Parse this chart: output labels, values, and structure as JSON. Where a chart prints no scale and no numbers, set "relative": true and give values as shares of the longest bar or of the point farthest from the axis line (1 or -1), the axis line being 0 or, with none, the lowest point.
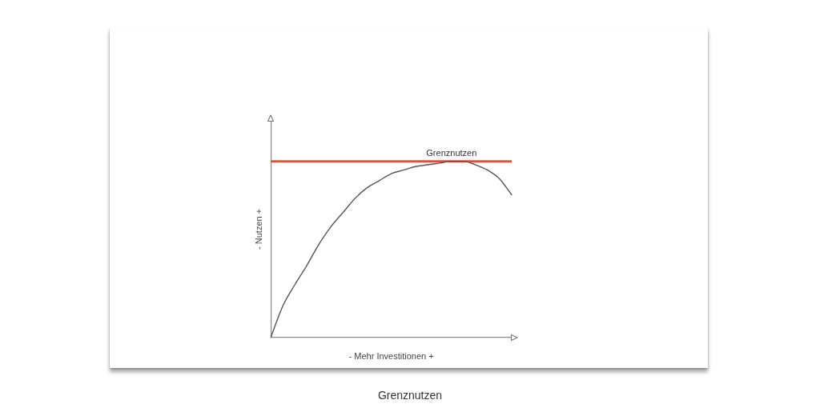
{
  "chart_data": {
    "type": "line",
    "title": "Grenznutzen",
    "xlabel": "- Mehr Investitionen +",
    "ylabel": "- Nutzen +",
    "relative": true,
    "categories": [
      null,
      null,
      null,
      null,
      null,
      null,
      null,
      null,
      null,
      null,
      null,
      null,
      null,
      null,
      null,
      null,
      null,
      null,
      null,
      null,
      null
    ],
    "color": "#555555",
    "values": [
      0,
      0.18,
      0.3,
      0.41,
      0.53,
      0.63,
      0.71,
      0.79,
      0.85,
      0.89,
      0.93,
      0.95,
      0.97,
      0.98,
      0.99,
      1,
      1,
      0.98,
      0.95,
      0.9,
      0.81
    ],
    "ref_lines": [
      {
        "axis": "y",
        "value": 1,
        "label": "Grenznutzen",
        "color": "#e0503c"
      }
    ],
    "marker": "none",
    "tick_labels": false,
    "grid": false,
    "legend": false
  }
}
